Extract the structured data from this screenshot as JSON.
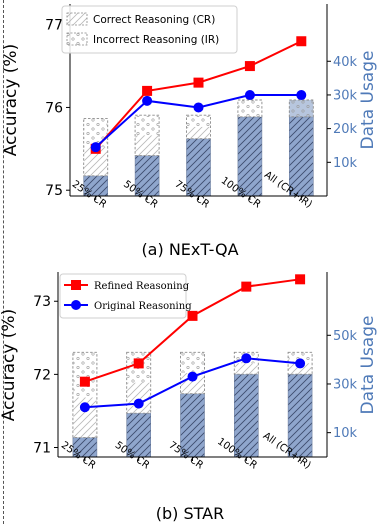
{
  "chart_data": [
    {
      "type": "bar+line",
      "caption": "(a) NExT-QA",
      "categories": [
        "25% CR",
        "50% CR",
        "75% CR",
        "100% CR",
        "All (CR+IR)"
      ],
      "ylabel": "Accuracy (%)",
      "ylim": [
        74.93,
        77.25
      ],
      "yticks": [
        "75",
        "76",
        "77"
      ],
      "y2label": "Data Usage",
      "y2lim": [
        0,
        57000
      ],
      "y2ticks": [
        "10k",
        "20k",
        "30k",
        "40k"
      ],
      "legend": [
        "Correct Reasoning (CR)",
        "Incorrect Reasoning (IR)"
      ],
      "bars": [
        {
          "name": "Correct Reasoning (CR)",
          "values": [
            6000,
            12000,
            17000,
            23500,
            23500
          ]
        },
        {
          "name": "Incorrect Reasoning (IR)",
          "values": [
            17000,
            12000,
            7000,
            0,
            0
          ]
        }
      ],
      "series": [
        {
          "name": "red",
          "color": "#ff0000",
          "values": [
            75.5,
            76.2,
            76.3,
            76.5,
            76.8
          ]
        },
        {
          "name": "blue",
          "color": "#0000ff",
          "values": [
            75.52,
            76.08,
            76.0,
            76.15,
            76.15
          ]
        }
      ]
    },
    {
      "type": "bar+line",
      "caption": "(b) STAR",
      "categories": [
        "25% CR",
        "50% CR",
        "75% CR",
        "100% CR",
        "All (CR+IR)"
      ],
      "ylabel": "Accuracy (%)",
      "ylim": [
        70.87,
        73.4
      ],
      "yticks": [
        "71",
        "72",
        "73"
      ],
      "y2label": "Data Usage",
      "y2lim": [
        0,
        76000
      ],
      "y2ticks": [
        "10k",
        "30k",
        "50k"
      ],
      "legend": [
        "Refined Reasoning",
        "Original Reasoning"
      ],
      "bars": [
        {
          "name": "Correct Reasoning (CR)",
          "values": [
            8000,
            18000,
            26000,
            34000,
            34000
          ]
        },
        {
          "name": "Incorrect Reasoning (IR)",
          "values": [
            35000,
            25000,
            17000,
            9000,
            9000
          ]
        }
      ],
      "series": [
        {
          "name": "Refined Reasoning",
          "color": "#ff0000",
          "values": [
            71.9,
            72.15,
            72.8,
            73.2,
            73.3
          ]
        },
        {
          "name": "Original Reasoning",
          "color": "#0000ff",
          "values": [
            71.55,
            71.6,
            71.97,
            72.22,
            72.15
          ]
        }
      ]
    }
  ],
  "colors": {
    "red": "#ff0000",
    "blue": "#0000ff",
    "bar_fill": "#8fa6cd",
    "bar_hatch": "#3d4c6e",
    "secondary_axis": "#4f7ab8"
  }
}
